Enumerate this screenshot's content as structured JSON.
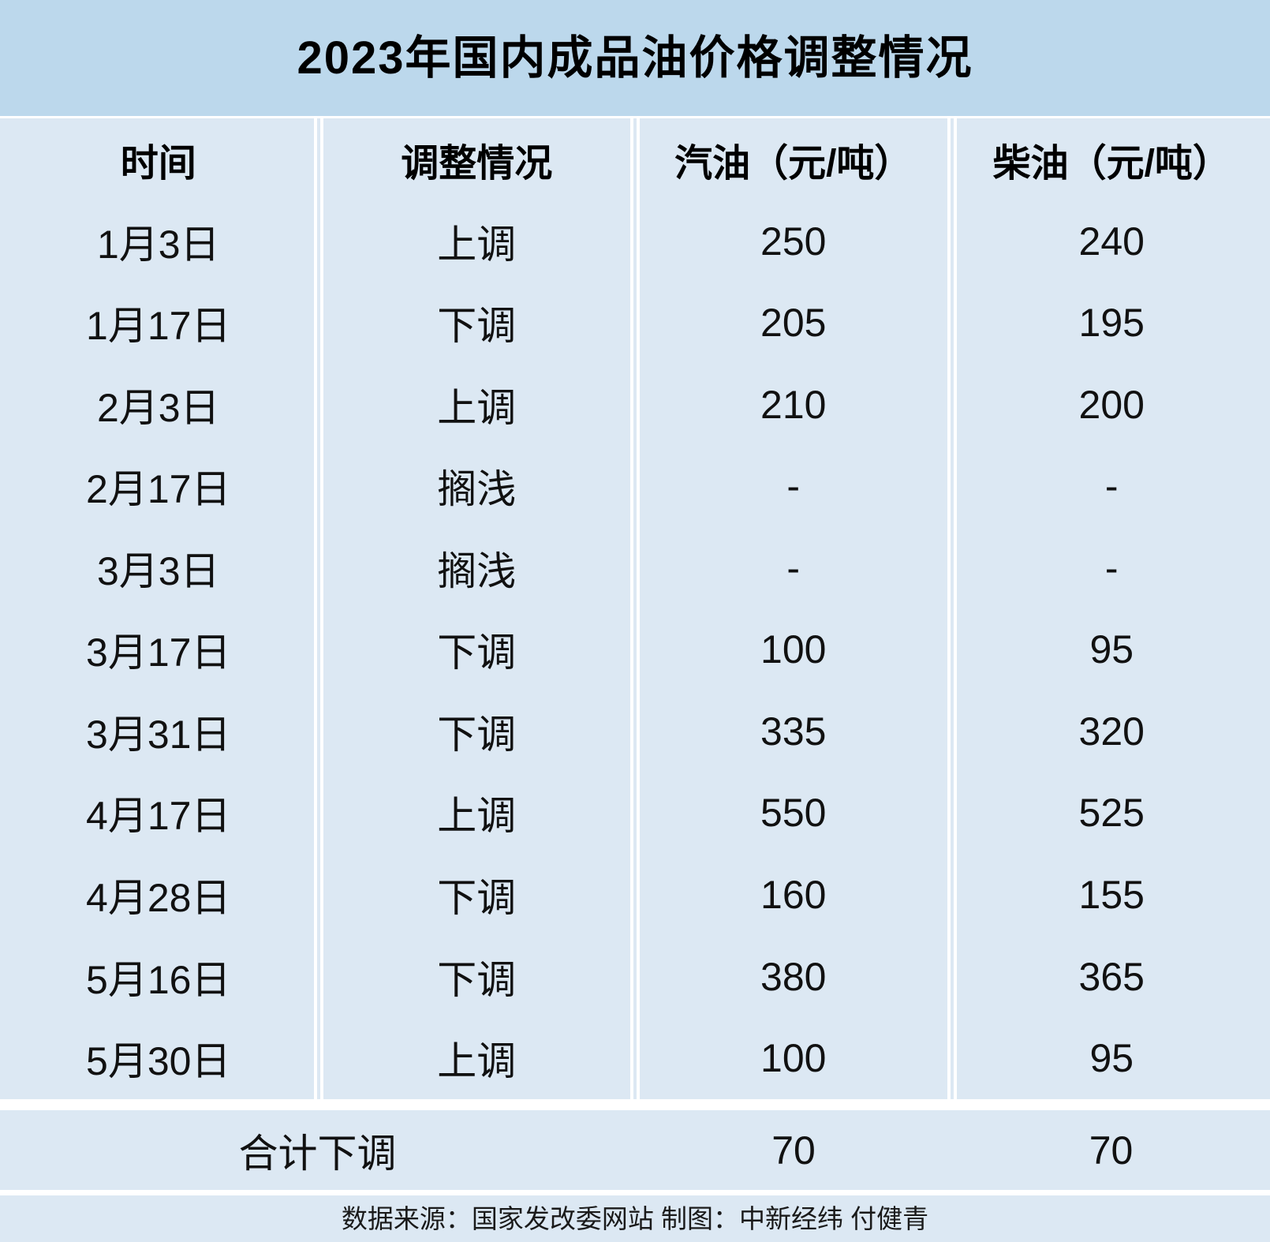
{
  "title": "2023年国内成品油价格调整情况",
  "table": {
    "headers": [
      "时间",
      "调整情况",
      "汽油（元/吨）",
      "柴油（元/吨）"
    ],
    "rows": [
      {
        "date": "1月3日",
        "adjust": "上调",
        "gasoline": "250",
        "diesel": "240",
        "highlight": true
      },
      {
        "date": "1月17日",
        "adjust": "下调",
        "gasoline": "205",
        "diesel": "195",
        "highlight": false
      },
      {
        "date": "2月3日",
        "adjust": "上调",
        "gasoline": "210",
        "diesel": "200",
        "highlight": true
      },
      {
        "date": "2月17日",
        "adjust": "搁浅",
        "gasoline": "-",
        "diesel": "-",
        "highlight": false
      },
      {
        "date": "3月3日",
        "adjust": "搁浅",
        "gasoline": "-",
        "diesel": "-",
        "highlight": false
      },
      {
        "date": "3月17日",
        "adjust": "下调",
        "gasoline": "100",
        "diesel": "95",
        "highlight": false
      },
      {
        "date": "3月31日",
        "adjust": "下调",
        "gasoline": "335",
        "diesel": "320",
        "highlight": false
      },
      {
        "date": "4月17日",
        "adjust": "上调",
        "gasoline": "550",
        "diesel": "525",
        "highlight": true
      },
      {
        "date": "4月28日",
        "adjust": "下调",
        "gasoline": "160",
        "diesel": "155",
        "highlight": false
      },
      {
        "date": "5月16日",
        "adjust": "下调",
        "gasoline": "380",
        "diesel": "365",
        "highlight": false
      },
      {
        "date": "5月30日",
        "adjust": "上调",
        "gasoline": "100",
        "diesel": "95",
        "highlight": true
      }
    ],
    "summary": {
      "label": "合计下调",
      "gasoline": "70",
      "diesel": "70"
    }
  },
  "footer": "数据来源：国家发改委网站 制图：中新经纬 付健青",
  "colors": {
    "title_bg": "#bcd8ec",
    "cell_bg": "#dce8f3",
    "accent_red": "#e8191c",
    "text": "#000000"
  },
  "chart_data": {
    "type": "table",
    "title": "2023年国内成品油价格调整情况",
    "columns": [
      "时间",
      "调整情况",
      "汽油（元/吨）",
      "柴油（元/吨）"
    ],
    "rows": [
      [
        "1月3日",
        "上调",
        250,
        240
      ],
      [
        "1月17日",
        "下调",
        205,
        195
      ],
      [
        "2月3日",
        "上调",
        210,
        200
      ],
      [
        "2月17日",
        "搁浅",
        null,
        null
      ],
      [
        "3月3日",
        "搁浅",
        null,
        null
      ],
      [
        "3月17日",
        "下调",
        100,
        95
      ],
      [
        "3月31日",
        "下调",
        335,
        320
      ],
      [
        "4月17日",
        "上调",
        550,
        525
      ],
      [
        "4月28日",
        "下调",
        160,
        155
      ],
      [
        "5月16日",
        "下调",
        380,
        365
      ],
      [
        "5月30日",
        "上调",
        100,
        95
      ]
    ],
    "summary_row": [
      "合计下调",
      70,
      70
    ],
    "notes": "上调 rows rendered in red (#e8191c); 搁浅 rows show dashes",
    "source": "数据来源：国家发改委网站 制图：中新经纬 付健青"
  }
}
